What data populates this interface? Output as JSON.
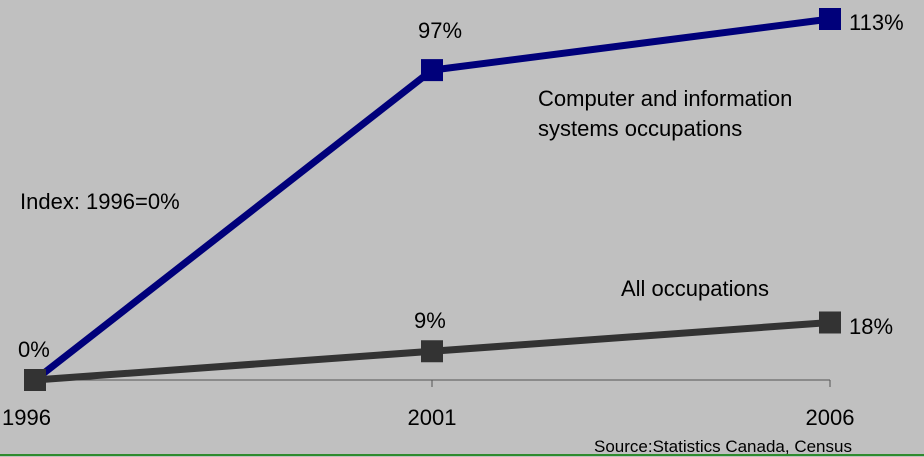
{
  "chart_data": {
    "type": "line",
    "categories": [
      "1996",
      "2001",
      "2006"
    ],
    "ylim": [
      0,
      113
    ],
    "grid": false,
    "series": [
      {
        "name": "Computer and information systems occupations",
        "name_lines": [
          "Computer and information",
          "systems occupations"
        ],
        "values": [
          0,
          97,
          113
        ],
        "labels": [
          "0%",
          "97%",
          "113%"
        ],
        "color": "#00007a"
      },
      {
        "name": "All occupations",
        "name_lines": [
          "All occupations"
        ],
        "values": [
          0,
          9,
          18
        ],
        "labels": [
          "",
          "9%",
          "18%"
        ],
        "color": "#333333"
      }
    ],
    "annotations": {
      "index_note": "Index: 1996=0%",
      "source": "Source:Statistics Canada, Census"
    }
  },
  "colors": {
    "background": "#c0c0c0",
    "footer_line": "#2e8b2e"
  }
}
